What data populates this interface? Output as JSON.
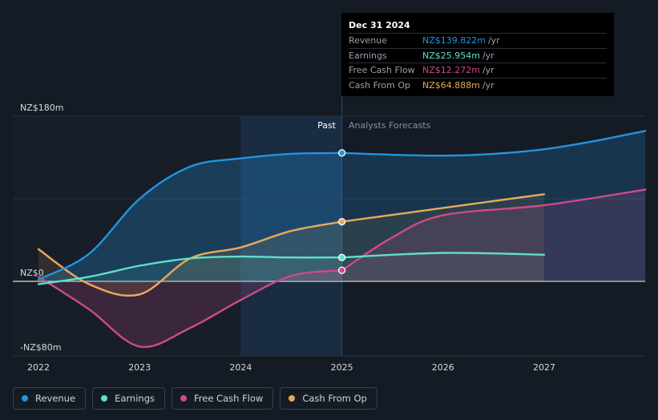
{
  "colors": {
    "revenue": "#2394df",
    "earnings": "#5ee0c9",
    "fcf": "#cf4a88",
    "cfo": "#e8a95a"
  },
  "tooltip": {
    "date": "Dec 31 2024",
    "rows": [
      {
        "label": "Revenue",
        "value": "NZ$139.822m",
        "unit": "/yr"
      },
      {
        "label": "Earnings",
        "value": "NZ$25.954m",
        "unit": "/yr"
      },
      {
        "label": "Free Cash Flow",
        "value": "NZ$12.272m",
        "unit": "/yr"
      },
      {
        "label": "Cash From Op",
        "value": "NZ$64.888m",
        "unit": "/yr"
      }
    ]
  },
  "regions": {
    "past": "Past",
    "forecast": "Analysts Forecasts"
  },
  "legend": [
    {
      "label": "Revenue",
      "series": "revenue"
    },
    {
      "label": "Earnings",
      "series": "earnings"
    },
    {
      "label": "Free Cash Flow",
      "series": "fcf"
    },
    {
      "label": "Cash From Op",
      "series": "cfo"
    }
  ],
  "chart_data": {
    "type": "line",
    "y_tick_labels": [
      "NZ$180m",
      "NZ$0",
      "-NZ$80m"
    ],
    "y_ticks": [
      180,
      0,
      -80
    ],
    "ylim": [
      -80,
      180
    ],
    "xlim": [
      2021.8,
      2028
    ],
    "x_tick_labels": [
      "2022",
      "2023",
      "2024",
      "2025",
      "2026",
      "2027"
    ],
    "x_ticks": [
      2022,
      2023,
      2024,
      2025,
      2026,
      2027
    ],
    "divider_x": 2025,
    "highlight_start": 2024,
    "grid": true,
    "series": [
      {
        "key": "revenue",
        "past": [
          [
            2022,
            2
          ],
          [
            2022.5,
            30
          ],
          [
            2023,
            90
          ],
          [
            2023.5,
            125
          ],
          [
            2024,
            134
          ],
          [
            2024.5,
            139
          ],
          [
            2025,
            140
          ]
        ],
        "forecast": [
          [
            2025,
            140
          ],
          [
            2025.5,
            138
          ],
          [
            2026,
            137
          ],
          [
            2026.5,
            139
          ],
          [
            2027,
            144
          ],
          [
            2027.5,
            153
          ],
          [
            2028,
            164
          ]
        ]
      },
      {
        "key": "earnings",
        "past": [
          [
            2022,
            -3
          ],
          [
            2022.5,
            5
          ],
          [
            2023,
            17
          ],
          [
            2023.5,
            25
          ],
          [
            2024,
            27
          ],
          [
            2024.5,
            26
          ],
          [
            2025,
            26
          ]
        ],
        "forecast": [
          [
            2025,
            26
          ],
          [
            2026,
            31
          ],
          [
            2027,
            29
          ]
        ]
      },
      {
        "key": "fcf",
        "past": [
          [
            2022,
            5
          ],
          [
            2022.5,
            -30
          ],
          [
            2023,
            -70
          ],
          [
            2023.5,
            -50
          ],
          [
            2024,
            -20
          ],
          [
            2024.5,
            6
          ],
          [
            2025,
            12
          ]
        ],
        "forecast": [
          [
            2025,
            12
          ],
          [
            2025.5,
            48
          ],
          [
            2026,
            72
          ],
          [
            2027,
            83
          ],
          [
            2028,
            100
          ]
        ]
      },
      {
        "key": "cfo",
        "past": [
          [
            2022,
            35
          ],
          [
            2022.5,
            -3
          ],
          [
            2023,
            -14
          ],
          [
            2023.5,
            25
          ],
          [
            2024,
            37
          ],
          [
            2024.5,
            55
          ],
          [
            2025,
            65
          ]
        ],
        "forecast": [
          [
            2025,
            65
          ],
          [
            2026,
            80
          ],
          [
            2027,
            95
          ]
        ]
      }
    ]
  }
}
